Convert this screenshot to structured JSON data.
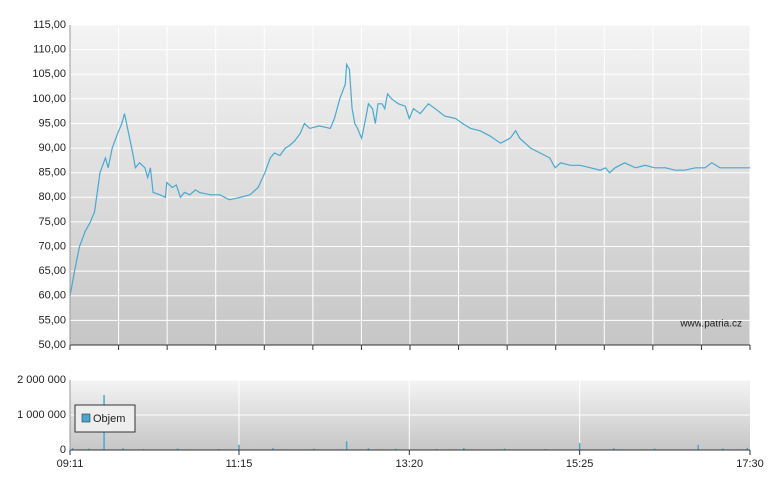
{
  "chart_data": [
    {
      "type": "line",
      "color": "#4aa8d0",
      "annotation": "www.patria.cz",
      "x": [
        "09:11",
        "09:15",
        "09:18",
        "09:22",
        "09:26",
        "09:29",
        "09:33",
        "09:37",
        "09:39",
        "09:42",
        "09:46",
        "09:49",
        "09:51",
        "09:54",
        "09:57",
        "09:59",
        "10:02",
        "10:06",
        "10:08",
        "10:10",
        "10:12",
        "10:17",
        "10:21",
        "10:22",
        "10:26",
        "10:29",
        "10:32",
        "10:35",
        "10:39",
        "10:43",
        "10:46",
        "10:54",
        "11:01",
        "11:08",
        "11:16",
        "11:23",
        "11:29",
        "11:34",
        "11:38",
        "11:41",
        "11:45",
        "11:49",
        "11:52",
        "11:56",
        "12:00",
        "12:03",
        "12:07",
        "12:14",
        "12:22",
        "12:25",
        "12:29",
        "12:33",
        "12:34",
        "12:36",
        "12:38",
        "12:40",
        "12:42",
        "12:45",
        "12:48",
        "12:50",
        "12:53",
        "12:55",
        "12:57",
        "13:00",
        "13:02",
        "13:04",
        "13:07",
        "13:12",
        "13:17",
        "13:20",
        "13:23",
        "13:28",
        "13:34",
        "13:39",
        "13:46",
        "13:54",
        "13:59",
        "14:05",
        "14:12",
        "14:19",
        "14:27",
        "14:34",
        "14:38",
        "14:41",
        "14:49",
        "14:56",
        "15:03",
        "15:07",
        "15:11",
        "15:18",
        "15:25",
        "15:33",
        "15:40",
        "15:44",
        "15:47",
        "15:51",
        "15:58",
        "16:06",
        "16:13",
        "16:20",
        "16:28",
        "16:35",
        "16:42",
        "16:50",
        "16:57",
        "17:02",
        "17:08",
        "17:15",
        "17:23",
        "17:30"
      ],
      "values": [
        60,
        66,
        70,
        73,
        75,
        77,
        85,
        88,
        86,
        90,
        93,
        95,
        97,
        93,
        89,
        86,
        87,
        86,
        84,
        86,
        81,
        80.5,
        80,
        83,
        82,
        82.5,
        80,
        81,
        80.5,
        81.5,
        81,
        80.5,
        80.5,
        79.5,
        80,
        80.5,
        82,
        85,
        88,
        89,
        88.5,
        90,
        90.5,
        91.5,
        93,
        95,
        94,
        94.5,
        94,
        96,
        100,
        103,
        107,
        106,
        98,
        95,
        94,
        92,
        96,
        99,
        98,
        95,
        99,
        99,
        98,
        101,
        100,
        99,
        98.5,
        96,
        98,
        97,
        99,
        98,
        96.5,
        96,
        95,
        94,
        93.5,
        92.5,
        91,
        92,
        93.5,
        92,
        90,
        89,
        88,
        86,
        87,
        86.5,
        86.5,
        86,
        85.5,
        86,
        85,
        86,
        87,
        86,
        86.5,
        86,
        86,
        85.5,
        85.5,
        86,
        86,
        87,
        86,
        86,
        86,
        86
      ],
      "xlim": [
        "09:11",
        "17:30"
      ],
      "ylim": [
        50,
        115
      ],
      "yticks": [
        {
          "value": 50,
          "label": "50,00"
        },
        {
          "value": 55,
          "label": "55,00"
        },
        {
          "value": 60,
          "label": "60,00"
        },
        {
          "value": 65,
          "label": "65,00"
        },
        {
          "value": 70,
          "label": "70,00"
        },
        {
          "value": 75,
          "label": "75,00"
        },
        {
          "value": 80,
          "label": "80,00"
        },
        {
          "value": 85,
          "label": "85,00"
        },
        {
          "value": 90,
          "label": "90,00"
        },
        {
          "value": 95,
          "label": "95,00"
        },
        {
          "value": 100,
          "label": "100,00"
        },
        {
          "value": 105,
          "label": "105,00"
        },
        {
          "value": 110,
          "label": "110,00"
        },
        {
          "value": 115,
          "label": "115,00"
        }
      ],
      "grid": true
    },
    {
      "type": "bar",
      "x": [
        "09:13",
        "09:25",
        "09:36",
        "09:50",
        "10:05",
        "10:30",
        "11:00",
        "11:15",
        "11:40",
        "12:10",
        "12:34",
        "12:50",
        "13:10",
        "13:40",
        "14:00",
        "14:30",
        "15:00",
        "15:25",
        "15:50",
        "16:20",
        "16:52",
        "17:10",
        "17:28"
      ],
      "series": [
        {
          "name": "Objem",
          "color": "#4aa8d0",
          "values": [
            60000,
            40000,
            1570000,
            50000,
            30000,
            40000,
            30000,
            150000,
            60000,
            40000,
            250000,
            50000,
            40000,
            30000,
            60000,
            40000,
            30000,
            200000,
            50000,
            40000,
            150000,
            40000,
            60000
          ]
        }
      ],
      "xlim": [
        "09:11",
        "17:30"
      ],
      "xticks": [
        "09:11",
        "11:15",
        "13:20",
        "15:25",
        "17:30"
      ],
      "ylim": [
        0,
        2000000
      ],
      "yticks": [
        0,
        {
          "value": 1000000,
          "label": "1 000 000"
        },
        {
          "value": 2000000,
          "label": "2 000 000"
        }
      ],
      "grid": true
    }
  ]
}
